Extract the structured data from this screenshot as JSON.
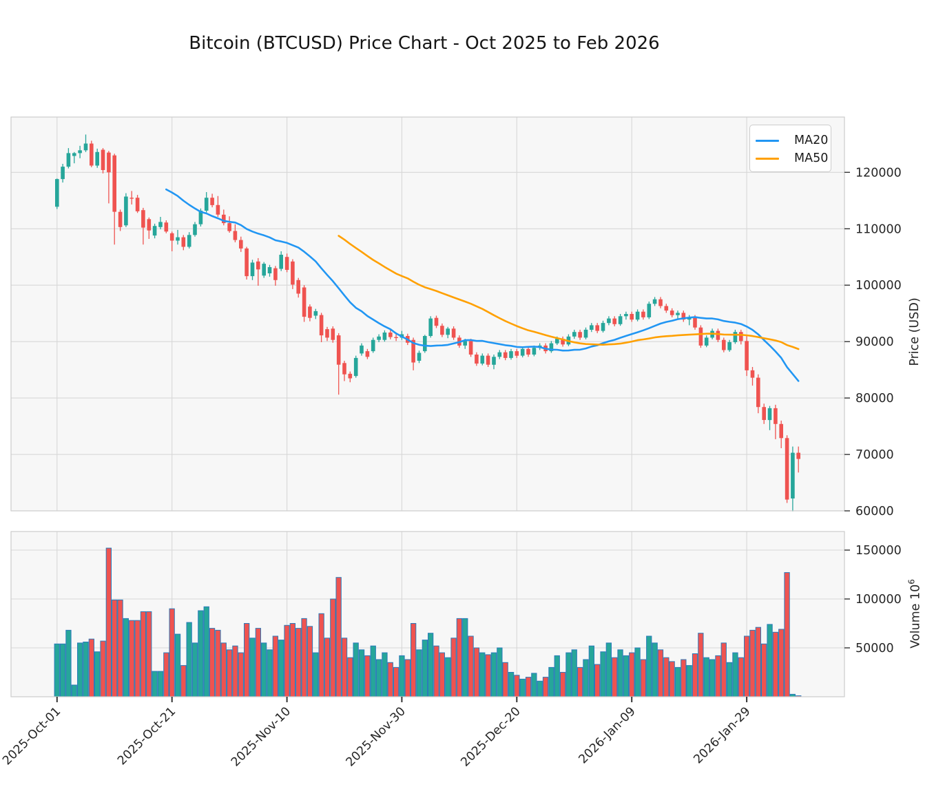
{
  "title": "Bitcoin (BTCUSD) Price Chart - Oct 2025 to Feb 2026",
  "legend": {
    "items": [
      {
        "label": "MA20",
        "color": "#2196f3"
      },
      {
        "label": "MA50",
        "color": "#ffa000"
      }
    ]
  },
  "price_axis": {
    "label": "Price (USD)",
    "ticks": [
      60000,
      70000,
      80000,
      90000,
      100000,
      110000,
      120000
    ]
  },
  "volume_axis": {
    "label_base": "Volume 10",
    "label_exp": "6",
    "ticks": [
      50000,
      100000,
      150000
    ]
  },
  "x_axis": {
    "tick_labels": [
      "2025-Oct-01",
      "2025-Oct-21",
      "2025-Nov-10",
      "2025-Nov-30",
      "2025-Dec-20",
      "2026-Jan-09",
      "2026-Jan-29"
    ],
    "tick_indices": [
      0,
      20,
      40,
      60,
      80,
      100,
      120
    ]
  },
  "colors": {
    "up": "#26a69a",
    "down": "#ef5350",
    "ma20": "#2196f3",
    "ma50": "#ffa000",
    "volume_edge": "#2b7bba",
    "panel_bg": "#f7f7f7",
    "grid": "#d7d7d7",
    "spine": "#cccccc",
    "tick_text": "#262626"
  },
  "chart_data": {
    "type": "candlestick",
    "title": "Bitcoin (BTCUSD) Price Chart - Oct 2025 to Feb 2026",
    "start_date": "2025-10-01",
    "end_date": "2026-02-07",
    "frequency": "daily",
    "price_ylim": [
      60000,
      129800
    ],
    "volume_ylim": [
      0,
      169000
    ],
    "legend_position": "upper right",
    "grid": true,
    "moving_averages": [
      {
        "name": "MA20",
        "period": 20
      },
      {
        "name": "MA50",
        "period": 50
      }
    ],
    "ohlc": [
      [
        113900,
        118900,
        113500,
        118800
      ],
      [
        118800,
        121500,
        118200,
        121000
      ],
      [
        121000,
        124300,
        120700,
        123400
      ],
      [
        122900,
        123600,
        121600,
        123400
      ],
      [
        123400,
        124700,
        122500,
        123900
      ],
      [
        123900,
        126700,
        123600,
        125100
      ],
      [
        125100,
        125600,
        120900,
        121200
      ],
      [
        121200,
        124200,
        120800,
        123600
      ],
      [
        124000,
        124300,
        119800,
        120400
      ],
      [
        123500,
        123800,
        114500,
        120000
      ],
      [
        123000,
        123300,
        107200,
        113000
      ],
      [
        113000,
        113400,
        109600,
        110300
      ],
      [
        110600,
        116300,
        110300,
        115700
      ],
      [
        115500,
        116700,
        114300,
        115400
      ],
      [
        115500,
        116000,
        112800,
        113100
      ],
      [
        113300,
        113700,
        107200,
        110200
      ],
      [
        111700,
        112000,
        108200,
        109700
      ],
      [
        108800,
        110900,
        108300,
        110500
      ],
      [
        110300,
        112100,
        109900,
        111200
      ],
      [
        111100,
        111500,
        109200,
        109500
      ],
      [
        109200,
        109500,
        106000,
        107900
      ],
      [
        107900,
        109800,
        107200,
        108500
      ],
      [
        108500,
        108900,
        106200,
        106800
      ],
      [
        106800,
        109400,
        106500,
        108900
      ],
      [
        108900,
        111200,
        108600,
        110800
      ],
      [
        110800,
        113600,
        110400,
        113200
      ],
      [
        113200,
        116500,
        112900,
        115500
      ],
      [
        115500,
        116200,
        113800,
        114200
      ],
      [
        114200,
        115800,
        112100,
        112500
      ],
      [
        112500,
        113400,
        110600,
        111000
      ],
      [
        111000,
        112200,
        109300,
        109600
      ],
      [
        109600,
        110800,
        107600,
        108000
      ],
      [
        108000,
        108600,
        105900,
        106500
      ],
      [
        106500,
        106800,
        101000,
        101600
      ],
      [
        101600,
        104500,
        100900,
        104000
      ],
      [
        104200,
        104800,
        99900,
        102800
      ],
      [
        101700,
        104100,
        101300,
        103800
      ],
      [
        102100,
        103600,
        101500,
        103200
      ],
      [
        103000,
        103400,
        99900,
        100900
      ],
      [
        102900,
        106000,
        102500,
        105400
      ],
      [
        105000,
        105600,
        102300,
        102700
      ],
      [
        104200,
        104600,
        99300,
        100100
      ],
      [
        100900,
        101300,
        97800,
        98500
      ],
      [
        99600,
        100000,
        93500,
        94400
      ],
      [
        96200,
        96600,
        93600,
        94200
      ],
      [
        94600,
        95800,
        94000,
        95400
      ],
      [
        94700,
        95100,
        89900,
        91100
      ],
      [
        92200,
        92600,
        90100,
        90700
      ],
      [
        92300,
        92700,
        89800,
        90300
      ],
      [
        91100,
        91500,
        80600,
        85900
      ],
      [
        86200,
        86600,
        83000,
        84200
      ],
      [
        84300,
        84700,
        82800,
        83500
      ],
      [
        83900,
        87500,
        83600,
        87100
      ],
      [
        87900,
        89700,
        87500,
        89300
      ],
      [
        88300,
        88700,
        86900,
        87300
      ],
      [
        88300,
        90700,
        88000,
        90300
      ],
      [
        90300,
        91300,
        89900,
        90900
      ],
      [
        90300,
        92000,
        90000,
        91600
      ],
      [
        91600,
        92100,
        90400,
        90800
      ],
      [
        90800,
        91600,
        90100,
        90700
      ],
      [
        90700,
        91900,
        90300,
        91300
      ],
      [
        91000,
        91400,
        89400,
        89800
      ],
      [
        90300,
        90700,
        84900,
        86300
      ],
      [
        86600,
        88400,
        86200,
        88000
      ],
      [
        88300,
        91200,
        88000,
        91000
      ],
      [
        91000,
        94500,
        90700,
        94100
      ],
      [
        94200,
        94600,
        92400,
        92800
      ],
      [
        92800,
        93200,
        90800,
        91200
      ],
      [
        91200,
        92600,
        90600,
        92300
      ],
      [
        92300,
        92700,
        90300,
        90700
      ],
      [
        90700,
        91100,
        88900,
        89300
      ],
      [
        89300,
        90500,
        88700,
        90100
      ],
      [
        90100,
        90500,
        87300,
        87700
      ],
      [
        87700,
        88100,
        85700,
        86100
      ],
      [
        86100,
        87900,
        85800,
        87500
      ],
      [
        87500,
        87900,
        85500,
        85900
      ],
      [
        85900,
        87700,
        85100,
        87300
      ],
      [
        87300,
        88500,
        86900,
        88100
      ],
      [
        88100,
        88500,
        86700,
        87100
      ],
      [
        87100,
        88700,
        86800,
        88300
      ],
      [
        88300,
        88700,
        87100,
        87500
      ],
      [
        87500,
        89100,
        87200,
        88700
      ],
      [
        88700,
        89100,
        87300,
        87700
      ],
      [
        87700,
        89300,
        87400,
        88900
      ],
      [
        88900,
        89700,
        88500,
        89300
      ],
      [
        89300,
        89700,
        87900,
        88300
      ],
      [
        88300,
        90100,
        88000,
        89700
      ],
      [
        89700,
        90900,
        89400,
        90500
      ],
      [
        90500,
        90900,
        89100,
        89500
      ],
      [
        89500,
        91300,
        89200,
        90900
      ],
      [
        90900,
        92100,
        90500,
        91700
      ],
      [
        91700,
        92100,
        90300,
        90700
      ],
      [
        90700,
        92500,
        90400,
        92100
      ],
      [
        92100,
        93300,
        91700,
        92900
      ],
      [
        92900,
        93300,
        91500,
        91900
      ],
      [
        91900,
        93700,
        91600,
        93300
      ],
      [
        93300,
        94500,
        92900,
        94100
      ],
      [
        94100,
        94500,
        92700,
        93100
      ],
      [
        93100,
        94900,
        92800,
        94500
      ],
      [
        94500,
        95300,
        93900,
        94900
      ],
      [
        94900,
        95300,
        93500,
        93900
      ],
      [
        93900,
        95700,
        93600,
        95300
      ],
      [
        95300,
        95700,
        93900,
        94300
      ],
      [
        94300,
        97100,
        94000,
        96700
      ],
      [
        96700,
        97900,
        96300,
        97500
      ],
      [
        97500,
        97900,
        95900,
        96300
      ],
      [
        96300,
        96700,
        95100,
        95500
      ],
      [
        95500,
        95900,
        94300,
        94700
      ],
      [
        94700,
        95500,
        93900,
        95100
      ],
      [
        95100,
        95500,
        93500,
        93900
      ],
      [
        93900,
        94700,
        92900,
        94300
      ],
      [
        94300,
        94700,
        92100,
        92500
      ],
      [
        92500,
        92900,
        88900,
        89300
      ],
      [
        89300,
        91100,
        89000,
        90700
      ],
      [
        90700,
        92300,
        90400,
        91900
      ],
      [
        91900,
        92300,
        89900,
        90300
      ],
      [
        90300,
        90700,
        88100,
        88500
      ],
      [
        88500,
        90300,
        88200,
        89900
      ],
      [
        89900,
        92100,
        89600,
        91700
      ],
      [
        91700,
        92100,
        89500,
        90100
      ],
      [
        90100,
        91000,
        83900,
        84900
      ],
      [
        84900,
        85500,
        82200,
        83600
      ],
      [
        83600,
        84200,
        77300,
        78400
      ],
      [
        78400,
        79000,
        75400,
        76100
      ],
      [
        76100,
        78600,
        74300,
        78200
      ],
      [
        78200,
        78800,
        72700,
        75400
      ],
      [
        75400,
        76000,
        71100,
        72900
      ],
      [
        72900,
        73400,
        61400,
        62000
      ],
      [
        62200,
        71400,
        59900,
        70300
      ],
      [
        70300,
        71400,
        66800,
        69200
      ]
    ],
    "volume": [
      54000,
      54000,
      68000,
      12000,
      55000,
      56000,
      59000,
      46000,
      57000,
      152000,
      99000,
      99000,
      80000,
      78000,
      78000,
      87000,
      87000,
      26000,
      26000,
      45000,
      90000,
      64000,
      32000,
      76000,
      55000,
      88000,
      92000,
      70000,
      68000,
      55000,
      48000,
      52000,
      45000,
      75000,
      60000,
      70000,
      55000,
      48000,
      62000,
      58000,
      73000,
      75000,
      70000,
      80000,
      72000,
      45000,
      85000,
      60000,
      100000,
      122000,
      60000,
      40000,
      55000,
      48000,
      42000,
      52000,
      38000,
      45000,
      35000,
      30000,
      42000,
      38000,
      75000,
      48000,
      58000,
      65000,
      52000,
      45000,
      40000,
      60000,
      80000,
      80000,
      62000,
      50000,
      45000,
      43000,
      45000,
      50000,
      35000,
      25000,
      22000,
      18000,
      20000,
      24000,
      16000,
      20000,
      30000,
      42000,
      25000,
      45000,
      48000,
      30000,
      38000,
      52000,
      33000,
      46000,
      55000,
      40000,
      48000,
      42000,
      45000,
      50000,
      38000,
      62000,
      55000,
      48000,
      40000,
      36000,
      30000,
      38000,
      32000,
      44000,
      65000,
      40000,
      38000,
      42000,
      55000,
      35000,
      45000,
      40000,
      62000,
      68000,
      71000,
      54000,
      74000,
      66000,
      69000,
      127000,
      2500,
      1000
    ]
  }
}
